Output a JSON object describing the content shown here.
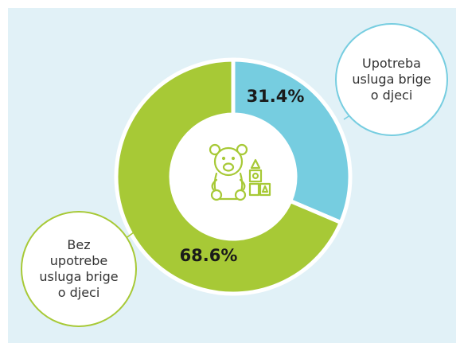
{
  "chart_data": {
    "type": "donut",
    "categories": [
      "Upotreba\nusluga brige\no djeci",
      "Bez\nupotrebe\nusluga brige\no djeci"
    ],
    "values": [
      31.4,
      68.6
    ],
    "value_labels": [
      "31.4%",
      "68.6%"
    ],
    "colors": [
      "#76cde0",
      "#a7c936"
    ]
  }
}
